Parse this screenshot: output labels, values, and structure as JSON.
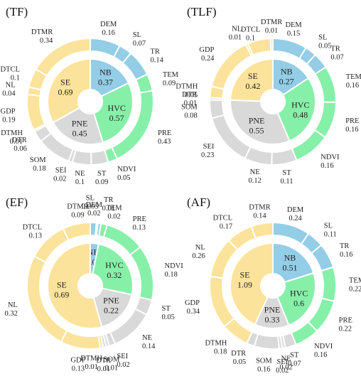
{
  "colors": {
    "NB": "#93cde6",
    "HVC": "#86f0a8",
    "PNE": "#d9d9d9",
    "SE": "#fce39b",
    "background": "#ffffff"
  },
  "chart_data": [
    {
      "type": "pie",
      "title": "(TF)",
      "inner": [
        {
          "name": "NB",
          "value": 0.37,
          "group": "NB"
        },
        {
          "name": "HVC",
          "value": 0.57,
          "group": "HVC"
        },
        {
          "name": "PNE",
          "value": 0.45,
          "group": "PNE"
        },
        {
          "name": "SE",
          "value": 0.69,
          "group": "SE"
        }
      ],
      "outer": [
        {
          "name": "DEM",
          "value": 0.16,
          "group": "NB"
        },
        {
          "name": "SL",
          "value": 0.07,
          "group": "NB"
        },
        {
          "name": "TR",
          "value": 0.14,
          "group": "NB"
        },
        {
          "name": "TEM",
          "value": 0.09,
          "group": "HVC"
        },
        {
          "name": "PRE",
          "value": 0.43,
          "group": "HVC"
        },
        {
          "name": "NDVI",
          "value": 0.05,
          "group": "HVC"
        },
        {
          "name": "ST",
          "value": 0.09,
          "group": "PNE"
        },
        {
          "name": "NE",
          "value": 0.1,
          "group": "PNE"
        },
        {
          "name": "SEI",
          "value": 0.02,
          "group": "PNE"
        },
        {
          "name": "SOM",
          "value": 0.18,
          "group": "PNE"
        },
        {
          "name": "DTR",
          "value": 0.06,
          "group": "PNE"
        },
        {
          "name": "DTMH",
          "value": 0.01,
          "group": "SE"
        },
        {
          "name": "GDP",
          "value": 0.19,
          "group": "SE"
        },
        {
          "name": "NL",
          "value": 0.04,
          "group": "SE"
        },
        {
          "name": "DTCL",
          "value": 0.1,
          "group": "SE"
        },
        {
          "name": "DTMR",
          "value": 0.34,
          "group": "SE"
        }
      ]
    },
    {
      "type": "pie",
      "title": "(TLF)",
      "inner": [
        {
          "name": "NB",
          "value": 0.27,
          "group": "NB"
        },
        {
          "name": "HVC",
          "value": 0.48,
          "group": "HVC"
        },
        {
          "name": "PNE",
          "value": 0.55,
          "group": "PNE"
        },
        {
          "name": "SE",
          "value": 0.42,
          "group": "SE"
        }
      ],
      "outer": [
        {
          "name": "DEM",
          "value": 0.15,
          "group": "NB"
        },
        {
          "name": "SL",
          "value": 0.05,
          "group": "NB"
        },
        {
          "name": "TR",
          "value": 0.07,
          "group": "NB"
        },
        {
          "name": "TEM",
          "value": 0.16,
          "group": "HVC"
        },
        {
          "name": "PRE",
          "value": 0.16,
          "group": "HVC"
        },
        {
          "name": "NDVI",
          "value": 0.16,
          "group": "HVC"
        },
        {
          "name": "ST",
          "value": 0.11,
          "group": "PNE"
        },
        {
          "name": "NE",
          "value": 0.12,
          "group": "PNE"
        },
        {
          "name": "SEI",
          "value": 0.23,
          "group": "PNE"
        },
        {
          "name": "SOM",
          "value": 0.08,
          "group": "PNE"
        },
        {
          "name": "DTR",
          "value": 0.01,
          "group": "PNE"
        },
        {
          "name": "DTMH",
          "value": 0.05,
          "group": "SE"
        },
        {
          "name": "GDP",
          "value": 0.24,
          "group": "SE"
        },
        {
          "name": "NL",
          "value": 0.01,
          "group": "SE"
        },
        {
          "name": "DTCL",
          "value": 0.1,
          "group": "SE"
        },
        {
          "name": "DTMR",
          "value": 0.01,
          "group": "SE"
        }
      ]
    },
    {
      "type": "pie",
      "title": "(EF)",
      "inner": [
        {
          "name": "NB",
          "value": 0.04,
          "group": "NB"
        },
        {
          "name": "HVC",
          "value": 0.32,
          "group": "HVC"
        },
        {
          "name": "PNE",
          "value": 0.22,
          "group": "PNE"
        },
        {
          "name": "SE",
          "value": 0.69,
          "group": "SE"
        }
      ],
      "outer": [
        {
          "name": "DEM",
          "value": 0.02,
          "group": "NB"
        },
        {
          "name": "SL",
          "value": 0.005,
          "group": "NB"
        },
        {
          "name": "TR",
          "value": 0.01,
          "group": "NB"
        },
        {
          "name": "TEM",
          "value": 0.02,
          "group": "HVC"
        },
        {
          "name": "PRE",
          "value": 0.13,
          "group": "HVC"
        },
        {
          "name": "NDVI",
          "value": 0.18,
          "group": "HVC"
        },
        {
          "name": "ST",
          "value": 0.05,
          "group": "PNE"
        },
        {
          "name": "NE",
          "value": 0.14,
          "group": "PNE"
        },
        {
          "name": "SEI",
          "value": 0.02,
          "group": "PNE"
        },
        {
          "name": "SOM",
          "value": 0.01,
          "group": "PNE"
        },
        {
          "name": "DTR",
          "value": 0.01,
          "group": "PNE"
        },
        {
          "name": "DTMH",
          "value": 0.01,
          "group": "SE"
        },
        {
          "name": "GDP",
          "value": 0.13,
          "group": "SE"
        },
        {
          "name": "NL",
          "value": 0.32,
          "group": "SE"
        },
        {
          "name": "DTCL",
          "value": 0.13,
          "group": "SE"
        },
        {
          "name": "DTMR",
          "value": 0.09,
          "group": "SE"
        }
      ]
    },
    {
      "type": "pie",
      "title": "(AF)",
      "inner": [
        {
          "name": "NB",
          "value": 0.51,
          "group": "NB"
        },
        {
          "name": "HVC",
          "value": 0.6,
          "group": "HVC"
        },
        {
          "name": "PNE",
          "value": 0.33,
          "group": "PNE"
        },
        {
          "name": "SE",
          "value": 1.09,
          "group": "SE"
        }
      ],
      "outer": [
        {
          "name": "DEM",
          "value": 0.24,
          "group": "NB"
        },
        {
          "name": "SL",
          "value": 0.11,
          "group": "NB"
        },
        {
          "name": "TR",
          "value": 0.16,
          "group": "NB"
        },
        {
          "name": "TEM",
          "value": 0.22,
          "group": "HVC"
        },
        {
          "name": "PRE",
          "value": 0.22,
          "group": "HVC"
        },
        {
          "name": "NDVI",
          "value": 0.16,
          "group": "HVC"
        },
        {
          "name": "ST",
          "value": 0.07,
          "group": "PNE"
        },
        {
          "name": "NE",
          "value": 0.02,
          "group": "PNE"
        },
        {
          "name": "SEI",
          "value": 0.02,
          "group": "PNE"
        },
        {
          "name": "SOM",
          "value": 0.16,
          "group": "PNE"
        },
        {
          "name": "DTR",
          "value": 0.05,
          "group": "PNE"
        },
        {
          "name": "DTMH",
          "value": 0.18,
          "group": "SE"
        },
        {
          "name": "GDP",
          "value": 0.34,
          "group": "SE"
        },
        {
          "name": "NL",
          "value": 0.26,
          "group": "SE"
        },
        {
          "name": "DTCL",
          "value": 0.17,
          "group": "SE"
        },
        {
          "name": "DTMR",
          "value": 0.14,
          "group": "SE"
        }
      ]
    }
  ]
}
